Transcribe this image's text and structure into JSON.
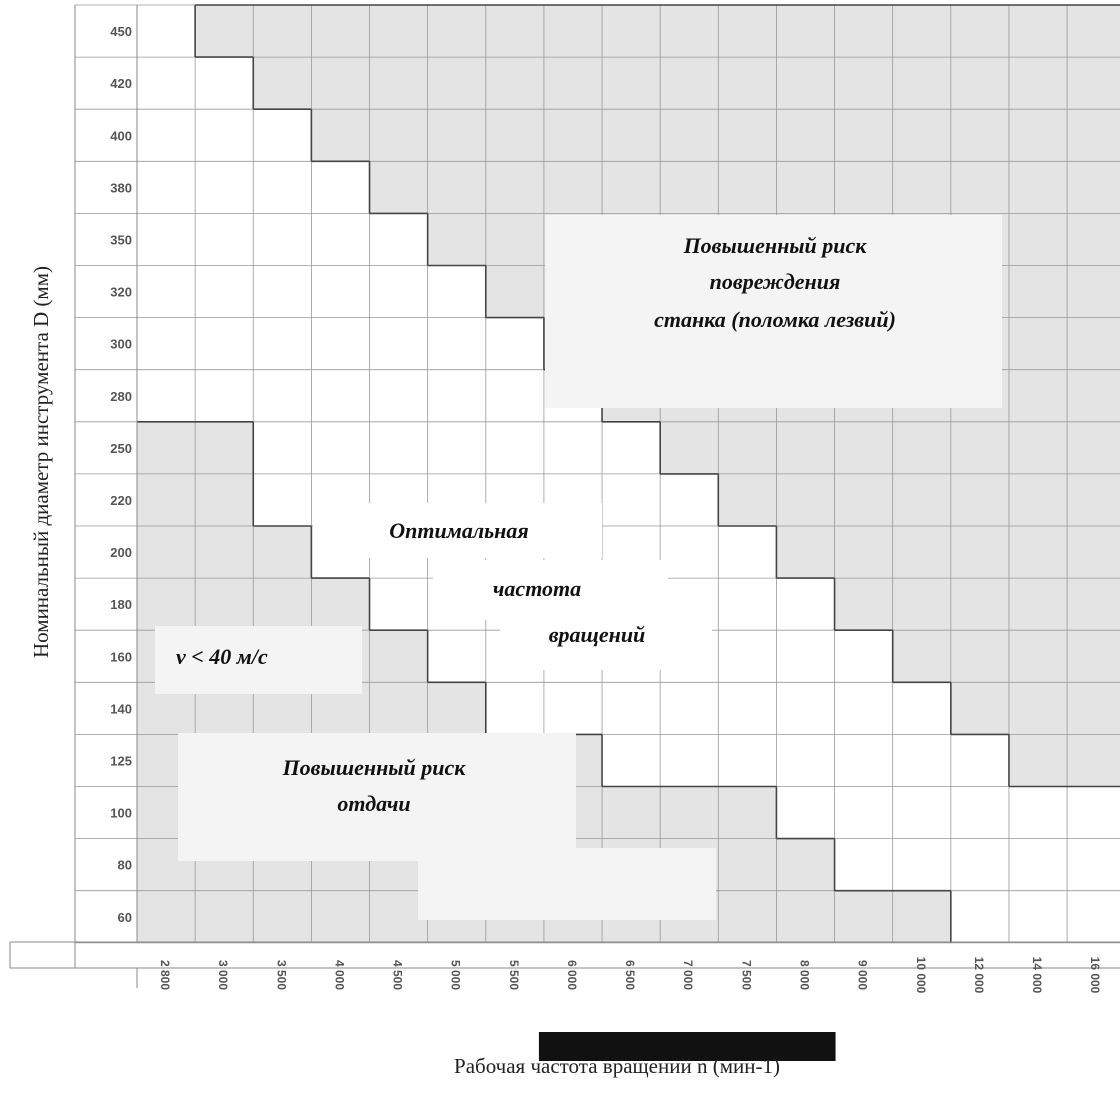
{
  "chart_data": {
    "type": "heatmap",
    "title": "",
    "xlabel": "Рабочая частота вращений n (мин-1)",
    "ylabel": "Номинальный диаметр инструмента D (мм)",
    "x_ticks": [
      "2 800",
      "3 000",
      "3 500",
      "4 000",
      "4 500",
      "5 000",
      "5 500",
      "6 000",
      "6 500",
      "7 000",
      "7 500",
      "8 000",
      "9 000",
      "10 000",
      "12 000",
      "14 000",
      "16 000"
    ],
    "y_ticks": [
      "450",
      "420",
      "400",
      "380",
      "350",
      "320",
      "300",
      "280",
      "250",
      "220",
      "200",
      "180",
      "160",
      "140",
      "125",
      "100",
      "80",
      "60"
    ],
    "zones": {
      "high": "Повышенный риск повреждения станка (поломка лезвий)",
      "optimal": "Оптимальная частота вращений",
      "low_speed": "v < 40 м/с",
      "low": "Повышенный риск отдачи"
    },
    "optimal_range": {
      "diameter_mm": [
        "450",
        "420",
        "400",
        "380",
        "350",
        "320",
        "300",
        "280",
        "250",
        "220",
        "200",
        "180",
        "160",
        "140",
        "125",
        "100",
        "80",
        "60"
      ],
      "min_rpm": [
        "2 800",
        "2 800",
        "2 800",
        "2 800",
        "2 800",
        "2 800",
        "2 800",
        "2 800",
        "3 500",
        "3 500",
        "4 000",
        "4 500",
        "5 000",
        "5 500",
        "6 500",
        "8 000",
        "9 000",
        "12 000"
      ],
      "max_rpm": [
        "2 800",
        "3 000",
        "3 500",
        "4 000",
        "4 500",
        "5 000",
        "5 500",
        "6 000",
        "6 500",
        "7 000",
        "7 500",
        "8 000",
        "9 000",
        "10 000",
        "12 000",
        "16 000",
        "16 000",
        "16 000"
      ]
    },
    "highlight": {
      "from": "6 000",
      "to": "8 000",
      "color": "#111111"
    },
    "colors": {
      "shaded": "#e4e4e4",
      "white": "#ffffff",
      "grid": "#999999",
      "boundary": "#444444"
    }
  }
}
